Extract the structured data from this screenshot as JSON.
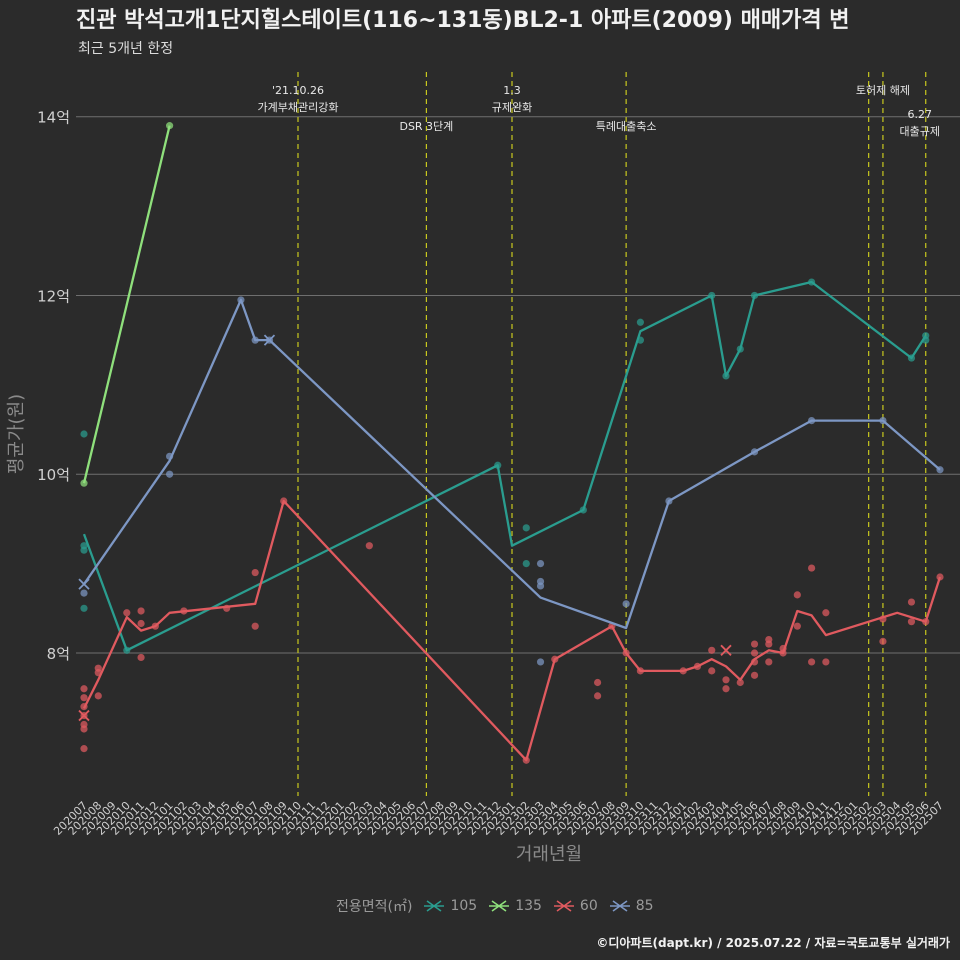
{
  "title": "진관 박석고개1단지힐스테이트(116~131동)BL2-1 아파트(2009) 매매가격 변",
  "subtitle": "최근 5개년 한정",
  "caption": "©디아파트(dapt.kr) / 2025.07.22 / 자료=국토교통부 실거래가",
  "colors": {
    "background": "#2b2b2b",
    "grid": "#6f6f6f",
    "event_line": "#c8c81e",
    "105": "#2a9d8f",
    "135": "#8fe07c",
    "60": "#e05a5f",
    "85": "#7d97c4"
  },
  "chart_data": {
    "type": "line",
    "xlabel": "거래년월",
    "ylabel": "평균가(원)",
    "ylim": [
      6.4,
      14.5
    ],
    "yticks": [
      8,
      10,
      12,
      14
    ],
    "ytick_labels": [
      "8억",
      "10억",
      "12억",
      "14억"
    ],
    "grid": "horizontal",
    "legend_title": "전용면적(㎡)",
    "legend_position": "bottom",
    "x_months": [
      "202007",
      "202008",
      "202009",
      "202010",
      "202011",
      "202012",
      "202101",
      "202102",
      "202103",
      "202104",
      "202105",
      "202106",
      "202107",
      "202108",
      "202109",
      "202110",
      "202111",
      "202112",
      "202201",
      "202202",
      "202203",
      "202204",
      "202205",
      "202206",
      "202207",
      "202208",
      "202209",
      "202210",
      "202211",
      "202212",
      "202301",
      "202302",
      "202303",
      "202304",
      "202305",
      "202306",
      "202307",
      "202308",
      "202309",
      "202310",
      "202311",
      "202312",
      "202401",
      "202402",
      "202403",
      "202404",
      "202405",
      "202406",
      "202407",
      "202408",
      "202409",
      "202410",
      "202411",
      "202412",
      "202501",
      "202502",
      "202503",
      "202504",
      "202505",
      "202506",
      "202507"
    ],
    "events": [
      {
        "month": "202110",
        "label": "'21.10.26\n가계부채관리강화",
        "row": 1
      },
      {
        "month": "202207",
        "label": "DSR 3단계",
        "row": 2
      },
      {
        "month": "202301",
        "label": "1.3\n규제완화",
        "row": 1
      },
      {
        "month": "202309",
        "label": "특례대출축소",
        "row": 2
      },
      {
        "month": "202502",
        "label": "",
        "row": 1
      },
      {
        "month": "202503",
        "label": "토허제 해제",
        "row": 1
      },
      {
        "month": "202506",
        "label": "6.27\n대출규제",
        "row": 3
      }
    ],
    "series": [
      {
        "name": "105",
        "line": [
          [
            "202007",
            9.33
          ],
          [
            "202010",
            8.03
          ],
          [
            "202212",
            10.1
          ],
          [
            "202301",
            9.2
          ],
          [
            "202306",
            9.6
          ],
          [
            "202310",
            11.6
          ],
          [
            "202403",
            12.0
          ],
          [
            "202404",
            11.1
          ],
          [
            "202405",
            11.4
          ],
          [
            "202406",
            12.0
          ],
          [
            "202410",
            12.15
          ],
          [
            "202505",
            11.3
          ],
          [
            "202506",
            11.55
          ]
        ],
        "points": [
          [
            "202007",
            10.45
          ],
          [
            "202007",
            9.2
          ],
          [
            "202007",
            9.15
          ],
          [
            "202007",
            8.5
          ],
          [
            "202010",
            8.03
          ],
          [
            "202212",
            10.1
          ],
          [
            "202302",
            9.4
          ],
          [
            "202302",
            9.0
          ],
          [
            "202306",
            9.6
          ],
          [
            "202310",
            11.7
          ],
          [
            "202310",
            11.5
          ],
          [
            "202403",
            12.0
          ],
          [
            "202404",
            11.1
          ],
          [
            "202405",
            11.4
          ],
          [
            "202406",
            12.0
          ],
          [
            "202410",
            12.15
          ],
          [
            "202505",
            11.3
          ],
          [
            "202506",
            11.55
          ],
          [
            "202506",
            11.5
          ]
        ],
        "crosses": []
      },
      {
        "name": "135",
        "line": [
          [
            "202007",
            9.9
          ],
          [
            "202101",
            13.9
          ]
        ],
        "points": [
          [
            "202007",
            9.9
          ],
          [
            "202101",
            13.9
          ]
        ],
        "crosses": []
      },
      {
        "name": "60",
        "line": [
          [
            "202007",
            7.38
          ],
          [
            "202008",
            7.7
          ],
          [
            "202010",
            8.4
          ],
          [
            "202011",
            8.25
          ],
          [
            "202012",
            8.3
          ],
          [
            "202101",
            8.45
          ],
          [
            "202107",
            8.55
          ],
          [
            "202109",
            9.7
          ],
          [
            "202302",
            6.8
          ],
          [
            "202304",
            7.93
          ],
          [
            "202308",
            8.3
          ],
          [
            "202309",
            8.0
          ],
          [
            "202310",
            7.8
          ],
          [
            "202401",
            7.8
          ],
          [
            "202402",
            7.85
          ],
          [
            "202403",
            7.93
          ],
          [
            "202404",
            7.85
          ],
          [
            "202405",
            7.7
          ],
          [
            "202406",
            7.93
          ],
          [
            "202407",
            8.03
          ],
          [
            "202408",
            8.0
          ],
          [
            "202409",
            8.47
          ],
          [
            "202410",
            8.42
          ],
          [
            "202411",
            8.2
          ],
          [
            "202504",
            8.45
          ],
          [
            "202506",
            8.35
          ],
          [
            "202507",
            8.85
          ]
        ],
        "points": [
          [
            "202007",
            7.6
          ],
          [
            "202007",
            7.5
          ],
          [
            "202007",
            7.4
          ],
          [
            "202007",
            7.3
          ],
          [
            "202007",
            7.2
          ],
          [
            "202007",
            7.15
          ],
          [
            "202007",
            6.93
          ],
          [
            "202008",
            7.83
          ],
          [
            "202008",
            7.78
          ],
          [
            "202008",
            7.52
          ],
          [
            "202010",
            8.45
          ],
          [
            "202011",
            8.47
          ],
          [
            "202011",
            8.33
          ],
          [
            "202011",
            7.95
          ],
          [
            "202012",
            8.3
          ],
          [
            "202102",
            8.47
          ],
          [
            "202105",
            8.5
          ],
          [
            "202107",
            8.9
          ],
          [
            "202107",
            8.3
          ],
          [
            "202109",
            9.7
          ],
          [
            "202203",
            9.2
          ],
          [
            "202302",
            6.8
          ],
          [
            "202304",
            7.93
          ],
          [
            "202307",
            7.67
          ],
          [
            "202307",
            7.52
          ],
          [
            "202308",
            8.3
          ],
          [
            "202309",
            8.0
          ],
          [
            "202310",
            7.8
          ],
          [
            "202401",
            7.8
          ],
          [
            "202402",
            7.85
          ],
          [
            "202403",
            8.03
          ],
          [
            "202403",
            7.8
          ],
          [
            "202404",
            7.7
          ],
          [
            "202404",
            7.6
          ],
          [
            "202405",
            7.67
          ],
          [
            "202406",
            8.1
          ],
          [
            "202406",
            8.0
          ],
          [
            "202406",
            7.9
          ],
          [
            "202406",
            7.75
          ],
          [
            "202407",
            8.15
          ],
          [
            "202407",
            8.1
          ],
          [
            "202407",
            7.9
          ],
          [
            "202408",
            8.05
          ],
          [
            "202408",
            8.0
          ],
          [
            "202409",
            8.65
          ],
          [
            "202409",
            8.3
          ],
          [
            "202410",
            8.95
          ],
          [
            "202410",
            7.9
          ],
          [
            "202411",
            8.45
          ],
          [
            "202411",
            7.9
          ],
          [
            "202503",
            8.38
          ],
          [
            "202503",
            8.13
          ],
          [
            "202505",
            8.57
          ],
          [
            "202505",
            8.35
          ],
          [
            "202506",
            8.35
          ],
          [
            "202507",
            8.85
          ]
        ],
        "crosses": [
          [
            "202007",
            7.3
          ],
          [
            "202404",
            8.03
          ]
        ]
      },
      {
        "name": "85",
        "line": [
          [
            "202007",
            8.77
          ],
          [
            "202101",
            10.15
          ],
          [
            "202106",
            11.95
          ],
          [
            "202107",
            11.5
          ],
          [
            "202108",
            11.5
          ],
          [
            "202303",
            8.62
          ],
          [
            "202309",
            8.28
          ],
          [
            "202312",
            9.7
          ],
          [
            "202406",
            10.25
          ],
          [
            "202410",
            10.6
          ],
          [
            "202503",
            10.6
          ],
          [
            "202507",
            10.05
          ]
        ],
        "points": [
          [
            "202007",
            8.67
          ],
          [
            "202101",
            10.2
          ],
          [
            "202101",
            10.0
          ],
          [
            "202106",
            11.95
          ],
          [
            "202107",
            11.5
          ],
          [
            "202108",
            11.5
          ],
          [
            "202303",
            9.0
          ],
          [
            "202303",
            8.8
          ],
          [
            "202303",
            8.75
          ],
          [
            "202303",
            7.9
          ],
          [
            "202309",
            8.55
          ],
          [
            "202312",
            9.7
          ],
          [
            "202406",
            10.25
          ],
          [
            "202410",
            10.6
          ],
          [
            "202503",
            10.6
          ],
          [
            "202507",
            10.05
          ]
        ],
        "crosses": [
          [
            "202007",
            8.77
          ],
          [
            "202108",
            11.5
          ]
        ]
      }
    ]
  }
}
